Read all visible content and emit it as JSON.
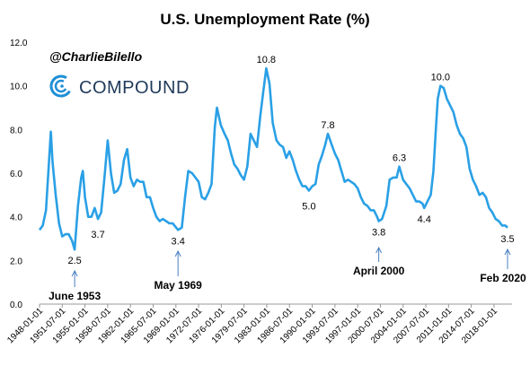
{
  "handle": "@CharlieBilello",
  "brand": {
    "name": "COMPOUND",
    "color": "#1f3a5a",
    "icon": "compound-logo-icon"
  },
  "colors": {
    "line": "#2aa0e6",
    "arrow": "#4a7fc1",
    "axis": "#999999"
  },
  "chart_data": {
    "type": "line",
    "title": "U.S. Unemployment Rate (%)",
    "xlabel": "",
    "ylabel": "",
    "ylim": [
      0,
      12
    ],
    "yticks": [
      "0.0",
      "2.0",
      "4.0",
      "6.0",
      "8.0",
      "10.0",
      "12.0"
    ],
    "xticks": [
      "1948-01-01",
      "1951-07-01",
      "1955-01-01",
      "1958-07-01",
      "1962-01-01",
      "1965-07-01",
      "1969-01-01",
      "1972-07-01",
      "1976-01-01",
      "1979-07-01",
      "1983-01-01",
      "1986-07-01",
      "1990-01-01",
      "1993-07-01",
      "1997-01-01",
      "2000-07-01",
      "2004-01-01",
      "2007-07-01",
      "2011-01-01",
      "2014-07-01",
      "2018-01-01"
    ],
    "xlim": [
      "1948-01-01",
      "2020-02-01"
    ],
    "grid": false,
    "series": [
      {
        "points": [
          [
            "1948-01-01",
            3.4
          ],
          [
            "1948-07-01",
            3.6
          ],
          [
            "1949-01-01",
            4.3
          ],
          [
            "1949-07-01",
            6.7
          ],
          [
            "1949-10-01",
            7.9
          ],
          [
            "1950-01-01",
            6.5
          ],
          [
            "1950-07-01",
            5.0
          ],
          [
            "1951-01-01",
            3.7
          ],
          [
            "1951-07-01",
            3.1
          ],
          [
            "1952-01-01",
            3.2
          ],
          [
            "1952-07-01",
            3.2
          ],
          [
            "1953-01-01",
            2.9
          ],
          [
            "1953-06-01",
            2.5
          ],
          [
            "1953-12-01",
            4.5
          ],
          [
            "1954-06-01",
            5.8
          ],
          [
            "1954-09-01",
            6.1
          ],
          [
            "1955-01-01",
            4.9
          ],
          [
            "1955-07-01",
            4.0
          ],
          [
            "1956-01-01",
            4.0
          ],
          [
            "1956-07-01",
            4.4
          ],
          [
            "1957-01-01",
            3.9
          ],
          [
            "1957-07-01",
            4.2
          ],
          [
            "1958-01-01",
            5.8
          ],
          [
            "1958-07-01",
            7.5
          ],
          [
            "1959-01-01",
            6.0
          ],
          [
            "1959-07-01",
            5.1
          ],
          [
            "1960-01-01",
            5.2
          ],
          [
            "1960-07-01",
            5.5
          ],
          [
            "1961-01-01",
            6.6
          ],
          [
            "1961-07-01",
            7.1
          ],
          [
            "1962-01-01",
            5.8
          ],
          [
            "1962-07-01",
            5.4
          ],
          [
            "1963-01-01",
            5.7
          ],
          [
            "1963-07-01",
            5.6
          ],
          [
            "1964-01-01",
            5.6
          ],
          [
            "1964-07-01",
            4.9
          ],
          [
            "1965-01-01",
            4.9
          ],
          [
            "1965-07-01",
            4.4
          ],
          [
            "1966-01-01",
            4.0
          ],
          [
            "1966-07-01",
            3.8
          ],
          [
            "1967-01-01",
            3.9
          ],
          [
            "1967-07-01",
            3.8
          ],
          [
            "1968-01-01",
            3.7
          ],
          [
            "1968-07-01",
            3.7
          ],
          [
            "1969-05-01",
            3.4
          ],
          [
            "1969-12-01",
            3.5
          ],
          [
            "1970-06-01",
            4.9
          ],
          [
            "1970-12-01",
            6.1
          ],
          [
            "1971-07-01",
            6.0
          ],
          [
            "1972-01-01",
            5.8
          ],
          [
            "1972-07-01",
            5.6
          ],
          [
            "1973-01-01",
            4.9
          ],
          [
            "1973-07-01",
            4.8
          ],
          [
            "1974-01-01",
            5.1
          ],
          [
            "1974-07-01",
            5.5
          ],
          [
            "1975-01-01",
            8.1
          ],
          [
            "1975-05-01",
            9.0
          ],
          [
            "1975-12-01",
            8.2
          ],
          [
            "1976-07-01",
            7.8
          ],
          [
            "1977-01-01",
            7.5
          ],
          [
            "1977-07-01",
            6.9
          ],
          [
            "1978-01-01",
            6.4
          ],
          [
            "1978-07-01",
            6.2
          ],
          [
            "1979-01-01",
            5.9
          ],
          [
            "1979-07-01",
            5.7
          ],
          [
            "1980-01-01",
            6.3
          ],
          [
            "1980-07-01",
            7.8
          ],
          [
            "1981-01-01",
            7.5
          ],
          [
            "1981-07-01",
            7.2
          ],
          [
            "1982-01-01",
            8.6
          ],
          [
            "1982-07-01",
            9.8
          ],
          [
            "1982-12-01",
            10.8
          ],
          [
            "1983-06-01",
            10.1
          ],
          [
            "1983-12-01",
            8.3
          ],
          [
            "1984-07-01",
            7.5
          ],
          [
            "1985-01-01",
            7.3
          ],
          [
            "1985-07-01",
            7.2
          ],
          [
            "1986-01-01",
            6.7
          ],
          [
            "1986-07-01",
            7.0
          ],
          [
            "1987-01-01",
            6.6
          ],
          [
            "1987-07-01",
            6.1
          ],
          [
            "1988-01-01",
            5.7
          ],
          [
            "1988-07-01",
            5.4
          ],
          [
            "1989-01-01",
            5.4
          ],
          [
            "1989-07-01",
            5.2
          ],
          [
            "1990-01-01",
            5.4
          ],
          [
            "1990-07-01",
            5.5
          ],
          [
            "1991-01-01",
            6.4
          ],
          [
            "1991-07-01",
            6.8
          ],
          [
            "1992-01-01",
            7.3
          ],
          [
            "1992-06-01",
            7.8
          ],
          [
            "1993-01-01",
            7.3
          ],
          [
            "1993-07-01",
            6.9
          ],
          [
            "1994-01-01",
            6.6
          ],
          [
            "1994-07-01",
            6.1
          ],
          [
            "1995-01-01",
            5.6
          ],
          [
            "1995-07-01",
            5.7
          ],
          [
            "1996-01-01",
            5.6
          ],
          [
            "1996-07-01",
            5.5
          ],
          [
            "1997-01-01",
            5.3
          ],
          [
            "1997-07-01",
            4.9
          ],
          [
            "1998-01-01",
            4.6
          ],
          [
            "1998-07-01",
            4.5
          ],
          [
            "1999-01-01",
            4.3
          ],
          [
            "1999-07-01",
            4.3
          ],
          [
            "2000-01-01",
            4.0
          ],
          [
            "2000-04-01",
            3.8
          ],
          [
            "2000-10-01",
            3.9
          ],
          [
            "2001-06-01",
            4.5
          ],
          [
            "2001-12-01",
            5.7
          ],
          [
            "2002-07-01",
            5.8
          ],
          [
            "2003-01-01",
            5.8
          ],
          [
            "2003-06-01",
            6.3
          ],
          [
            "2004-01-01",
            5.7
          ],
          [
            "2004-07-01",
            5.5
          ],
          [
            "2005-01-01",
            5.3
          ],
          [
            "2005-07-01",
            5.0
          ],
          [
            "2006-01-01",
            4.7
          ],
          [
            "2006-07-01",
            4.7
          ],
          [
            "2007-01-01",
            4.6
          ],
          [
            "2007-04-01",
            4.4
          ],
          [
            "2007-10-01",
            4.7
          ],
          [
            "2008-04-01",
            5.0
          ],
          [
            "2008-09-01",
            6.1
          ],
          [
            "2009-01-01",
            7.8
          ],
          [
            "2009-05-01",
            9.4
          ],
          [
            "2009-10-01",
            10.0
          ],
          [
            "2010-04-01",
            9.9
          ],
          [
            "2010-10-01",
            9.4
          ],
          [
            "2011-04-01",
            9.1
          ],
          [
            "2011-10-01",
            8.8
          ],
          [
            "2012-04-01",
            8.2
          ],
          [
            "2012-10-01",
            7.8
          ],
          [
            "2013-04-01",
            7.6
          ],
          [
            "2013-10-01",
            7.2
          ],
          [
            "2014-04-01",
            6.2
          ],
          [
            "2014-10-01",
            5.7
          ],
          [
            "2015-04-01",
            5.4
          ],
          [
            "2015-10-01",
            5.0
          ],
          [
            "2016-04-01",
            5.1
          ],
          [
            "2016-10-01",
            4.9
          ],
          [
            "2017-04-01",
            4.4
          ],
          [
            "2017-10-01",
            4.2
          ],
          [
            "2018-04-01",
            3.9
          ],
          [
            "2018-10-01",
            3.8
          ],
          [
            "2019-04-01",
            3.6
          ],
          [
            "2019-10-01",
            3.6
          ],
          [
            "2020-02-01",
            3.5
          ]
        ]
      }
    ],
    "annotations": [
      {
        "text": "2.5",
        "date": "1953-06-01",
        "value": 2.5,
        "pos": "below"
      },
      {
        "text": "3.7",
        "date": "1957-01-01",
        "value": 3.7,
        "pos": "below"
      },
      {
        "text": "3.4",
        "date": "1969-05-01",
        "value": 3.4,
        "pos": "below"
      },
      {
        "text": "10.8",
        "date": "1982-12-01",
        "value": 10.8,
        "pos": "above"
      },
      {
        "text": "5.0",
        "date": "1989-07-01",
        "value": 5.0,
        "pos": "below"
      },
      {
        "text": "7.8",
        "date": "1992-06-01",
        "value": 7.8,
        "pos": "above"
      },
      {
        "text": "3.8",
        "date": "2000-04-01",
        "value": 3.8,
        "pos": "below"
      },
      {
        "text": "6.3",
        "date": "2003-06-01",
        "value": 6.3,
        "pos": "above"
      },
      {
        "text": "4.4",
        "date": "2007-04-01",
        "value": 4.4,
        "pos": "below"
      },
      {
        "text": "10.0",
        "date": "2009-10-01",
        "value": 10.0,
        "pos": "above"
      },
      {
        "text": "3.5",
        "date": "2020-02-01",
        "value": 3.5,
        "pos": "below"
      }
    ],
    "callouts": [
      {
        "text": "June 1953",
        "date": "1953-06-01"
      },
      {
        "text": "May 1969",
        "date": "1969-05-01"
      },
      {
        "text": "April 2000",
        "date": "2000-04-01"
      },
      {
        "text": "Feb 2020",
        "date": "2020-02-01"
      }
    ]
  }
}
